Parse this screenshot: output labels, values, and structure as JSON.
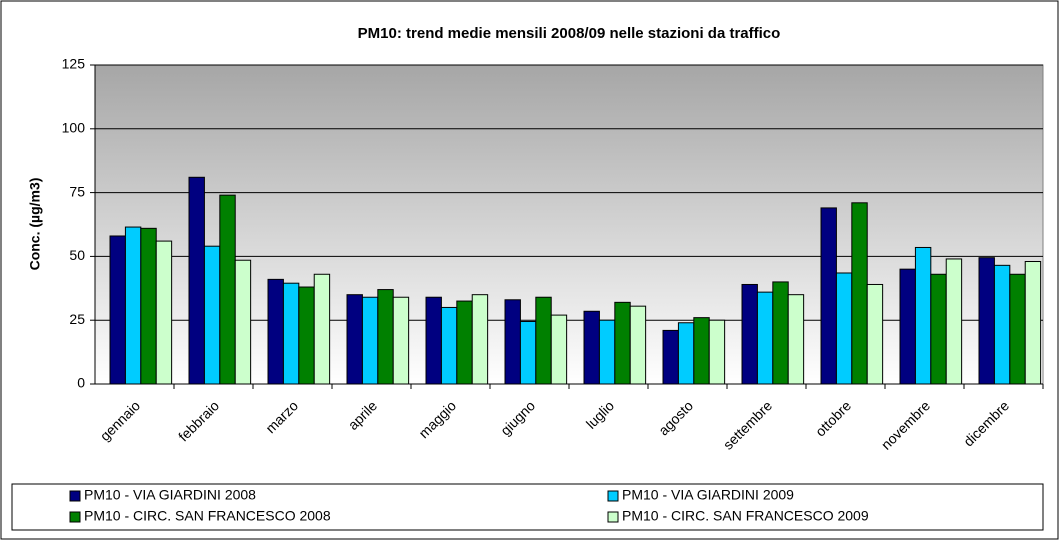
{
  "chart_data": {
    "type": "bar",
    "title": "PM10: trend medie mensili 2008/09 nelle stazioni da traffico",
    "y_label": "Conc. (µg/m3)",
    "categories": [
      "gennaio",
      "febbraio",
      "marzo",
      "aprile",
      "maggio",
      "giugno",
      "luglio",
      "agosto",
      "settembre",
      "ottobre",
      "novembre",
      "dicembre"
    ],
    "series": [
      {
        "name": "PM10 - VIA GIARDINI 2008",
        "color": "#000080",
        "values": [
          58,
          81,
          41,
          35,
          34,
          33,
          28.5,
          21,
          39,
          69,
          45,
          49.5
        ]
      },
      {
        "name": "PM10 - VIA GIARDINI 2009",
        "color": "#00ccff",
        "values": [
          61.5,
          54,
          39.5,
          34,
          30,
          24.5,
          25,
          24,
          36,
          43.5,
          53.5,
          46.5
        ]
      },
      {
        "name": "PM10 - CIRC. SAN FRANCESCO 2008",
        "color": "#008000",
        "values": [
          61,
          74,
          38,
          37,
          32.5,
          34,
          32,
          26,
          40,
          71,
          43,
          43
        ]
      },
      {
        "name": "PM10 - CIRC. SAN FRANCESCO 2009",
        "color": "#ccffcc",
        "values": [
          56,
          48.5,
          43,
          34,
          35,
          27,
          30.5,
          25,
          35,
          39,
          49,
          48
        ]
      }
    ],
    "ylim": [
      0,
      125
    ],
    "yticks": [
      0,
      25,
      50,
      75,
      100,
      125
    ],
    "grid": true
  }
}
